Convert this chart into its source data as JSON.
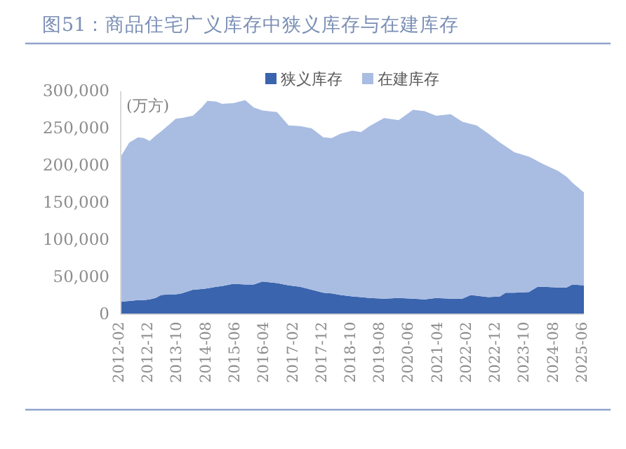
{
  "chart_data": {
    "type": "area",
    "stacked": true,
    "title": "图51：商品住宅广义库存中狭义库存与在建库存",
    "annotations": [
      "(万方)"
    ],
    "x": [
      "2012-02",
      "2012-05",
      "2012-08",
      "2012-10",
      "2012-12",
      "2013-02",
      "2013-04",
      "2013-07",
      "2013-09",
      "2013-11",
      "2014-03",
      "2014-06",
      "2014-08",
      "2014-11",
      "2015-01",
      "2015-05",
      "2015-09",
      "2015-12",
      "2016-03",
      "2016-08",
      "2016-12",
      "2017-04",
      "2017-08",
      "2017-12",
      "2018-03",
      "2018-06",
      "2018-10",
      "2019-01",
      "2019-04",
      "2019-09",
      "2020-02",
      "2020-07",
      "2020-11",
      "2021-03",
      "2021-08",
      "2021-12",
      "2022-03",
      "2022-05",
      "2022-09",
      "2023-01",
      "2023-03",
      "2023-06",
      "2023-11",
      "2024-02",
      "2024-04",
      "2024-09",
      "2024-12",
      "2025-02",
      "2025-06"
    ],
    "series": [
      {
        "name": "狭义库存",
        "color": "#3a64ad",
        "values": [
          17000,
          18000,
          19000,
          19000,
          20000,
          22000,
          26000,
          27000,
          27000,
          28000,
          33000,
          34000,
          35000,
          37000,
          38000,
          41000,
          40000,
          40000,
          44000,
          42000,
          39000,
          37000,
          33000,
          29000,
          28000,
          26000,
          24000,
          23000,
          22000,
          21000,
          22000,
          21000,
          20000,
          22000,
          21000,
          21000,
          26000,
          25000,
          23000,
          24000,
          29000,
          29000,
          30000,
          37000,
          37000,
          36000,
          36000,
          40000,
          39000
        ]
      },
      {
        "name": "在建库存",
        "color": "#a9bce2",
        "values": [
          195000,
          213000,
          219000,
          218000,
          213000,
          218000,
          220000,
          229000,
          236000,
          236000,
          234000,
          244000,
          252000,
          249000,
          245000,
          243000,
          248000,
          238000,
          230000,
          230000,
          215000,
          216000,
          217000,
          209000,
          209000,
          217000,
          223000,
          222000,
          231000,
          243000,
          239000,
          254000,
          253000,
          245000,
          248000,
          238000,
          230000,
          229000,
          220000,
          207000,
          197000,
          189000,
          182000,
          169000,
          165000,
          157000,
          149000,
          137000,
          125000
        ]
      }
    ],
    "xlim": [
      "2012-02",
      "2025-06"
    ],
    "xticks": [
      "2012-02",
      "2012-12",
      "2013-10",
      "2014-08",
      "2015-06",
      "2016-04",
      "2017-02",
      "2017-12",
      "2018-10",
      "2019-08",
      "2020-06",
      "2021-04",
      "2022-02",
      "2022-12",
      "2023-10",
      "2024-08",
      "2025-06"
    ],
    "ylim": [
      0,
      300000
    ],
    "yticks": [
      {
        "value": 0,
        "label": "0"
      },
      {
        "value": 50000,
        "label": "50,000"
      },
      {
        "value": 100000,
        "label": "100,000"
      },
      {
        "value": 150000,
        "label": "150,000"
      },
      {
        "value": 200000,
        "label": "200,000"
      },
      {
        "value": 250000,
        "label": "250,000"
      },
      {
        "value": 300000,
        "label": "300,000"
      }
    ],
    "legend": "top",
    "grid": false
  }
}
